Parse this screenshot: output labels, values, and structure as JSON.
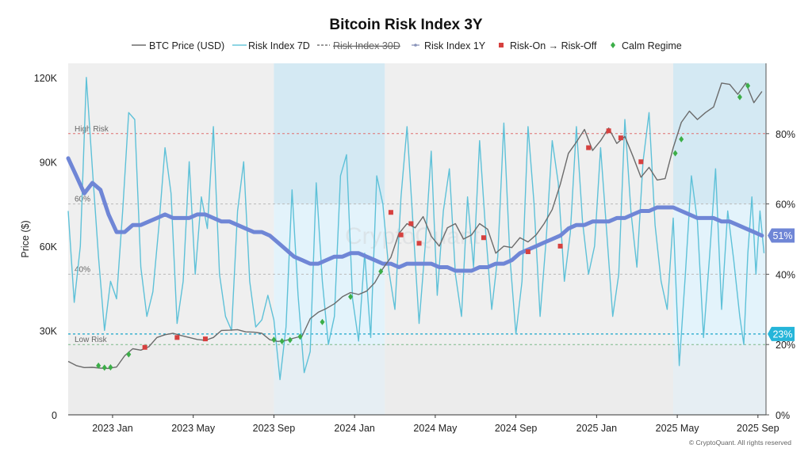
{
  "chart_data": {
    "type": "line",
    "title": "Bitcoin Risk Index 3Y",
    "legend": [
      "BTC Price (USD)",
      "Risk Index 7D",
      "Risk Index 30D",
      "Risk Index 1Y",
      "Risk-On → Risk-Off",
      "Calm Regime"
    ],
    "ylabel_left": "Price ($)",
    "y_left_ticks": [
      "0",
      "30K",
      "60K",
      "90K",
      "120K"
    ],
    "y_left_lim": [
      0,
      125000
    ],
    "y_right_ticks": [
      "0%",
      "20%",
      "40%",
      "60%",
      "80%"
    ],
    "y_right_lim": [
      0,
      100
    ],
    "x_ticks": [
      "2023 Jan",
      "2023 May",
      "2023 Sep",
      "2024 Jan",
      "2024 May",
      "2024 Sep",
      "2025 Jan",
      "2025 May",
      "2025 Sep"
    ],
    "x_tick_pos": [
      4,
      8,
      12,
      16,
      20,
      24,
      28,
      32,
      36
    ],
    "x_lim": [
      1.8,
      36.4
    ],
    "reference_lines": [
      {
        "label": "High Risk",
        "value": 80,
        "color": "#e07070"
      },
      {
        "label": "60%",
        "value": 60,
        "color": "#bbbbbb"
      },
      {
        "label": "40%",
        "value": 40,
        "color": "#bbbbbb"
      },
      {
        "label": "Low Risk",
        "value": 20,
        "color": "#7cb98a"
      },
      {
        "label": "",
        "value": 23,
        "color": "#1aa6c9"
      }
    ],
    "badges": [
      {
        "text": "51%",
        "value": 51,
        "color": "#6f86d6"
      },
      {
        "text": "23%",
        "value": 23,
        "color": "#25b5d9"
      }
    ],
    "regimes": [
      {
        "from": 1.8,
        "to": 12.0,
        "kind": "gray"
      },
      {
        "from": 12.0,
        "to": 17.5,
        "kind": "blue-dark"
      },
      {
        "from": 17.5,
        "to": 31.8,
        "kind": "gray"
      },
      {
        "from": 31.8,
        "to": 36.4,
        "kind": "blue-dark"
      }
    ],
    "btc_price": {
      "x": [
        1.8,
        2.2,
        2.6,
        3.0,
        3.4,
        3.8,
        4.2,
        4.6,
        5.0,
        5.4,
        5.8,
        6.2,
        6.6,
        7.0,
        7.4,
        7.8,
        8.2,
        8.6,
        9.0,
        9.4,
        9.8,
        10.2,
        10.6,
        11.0,
        11.4,
        11.8,
        12.2,
        12.6,
        13.0,
        13.4,
        13.8,
        14.2,
        14.6,
        15.0,
        15.4,
        15.8,
        16.2,
        16.6,
        17.0,
        17.4,
        17.8,
        18.2,
        18.6,
        19.0,
        19.4,
        19.8,
        20.2,
        20.6,
        21.0,
        21.4,
        21.8,
        22.2,
        22.6,
        23.0,
        23.4,
        23.8,
        24.2,
        24.6,
        25.0,
        25.4,
        25.8,
        26.2,
        26.6,
        27.0,
        27.4,
        27.8,
        28.2,
        28.6,
        29.0,
        29.4,
        29.8,
        30.2,
        30.6,
        31.0,
        31.4,
        31.8,
        32.2,
        32.6,
        33.0,
        33.4,
        33.8,
        34.2,
        34.6,
        35.0,
        35.4,
        35.8,
        36.2
      ],
      "y": [
        19000,
        17500,
        16800,
        16900,
        16600,
        16500,
        17000,
        21000,
        23500,
        23000,
        24200,
        27500,
        28500,
        29000,
        28200,
        27500,
        26800,
        26500,
        27500,
        30000,
        30100,
        30300,
        29500,
        29400,
        29000,
        26700,
        26100,
        26500,
        27300,
        28000,
        34200,
        36500,
        37800,
        39500,
        42000,
        43500,
        42800,
        44000,
        47000,
        52000,
        56000,
        64500,
        68000,
        66500,
        70500,
        63500,
        60000,
        66500,
        68000,
        62500,
        64000,
        68000,
        66000,
        57500,
        60000,
        59500,
        63000,
        61500,
        64000,
        68000,
        73000,
        82000,
        93000,
        97000,
        101500,
        94000,
        97500,
        102000,
        96500,
        99000,
        92000,
        84500,
        88000,
        83500,
        84000,
        95000,
        104000,
        108000,
        105000,
        107500,
        109500,
        118000,
        117500,
        114000,
        118000,
        111000,
        115000
      ]
    },
    "risk_1y": {
      "x": [
        1.8,
        2.2,
        2.6,
        3.0,
        3.4,
        3.8,
        4.2,
        4.6,
        5.0,
        5.4,
        5.8,
        6.2,
        6.6,
        7.0,
        7.4,
        7.8,
        8.2,
        8.6,
        9.0,
        9.4,
        9.8,
        10.2,
        10.6,
        11.0,
        11.4,
        11.8,
        12.2,
        12.6,
        13.0,
        13.4,
        13.8,
        14.2,
        14.6,
        15.0,
        15.4,
        15.8,
        16.2,
        16.6,
        17.0,
        17.4,
        17.8,
        18.2,
        18.6,
        19.0,
        19.4,
        19.8,
        20.2,
        20.6,
        21.0,
        21.4,
        21.8,
        22.2,
        22.6,
        23.0,
        23.4,
        23.8,
        24.2,
        24.6,
        25.0,
        25.4,
        25.8,
        26.2,
        26.6,
        27.0,
        27.4,
        27.8,
        28.2,
        28.6,
        29.0,
        29.4,
        29.8,
        30.2,
        30.6,
        31.0,
        31.4,
        31.8,
        32.2,
        32.6,
        33.0,
        33.4,
        33.8,
        34.2,
        34.6,
        35.0,
        35.4,
        35.8,
        36.2
      ],
      "y": [
        73,
        68,
        63,
        66,
        64,
        57,
        52,
        52,
        54,
        54,
        55,
        56,
        57,
        56,
        56,
        56,
        57,
        57,
        56,
        55,
        55,
        54,
        53,
        52,
        52,
        51,
        49,
        47,
        45,
        44,
        43,
        43,
        44,
        45,
        45,
        46,
        46,
        45,
        44,
        43,
        43,
        42,
        43,
        43,
        43,
        43,
        42,
        42,
        41,
        41,
        41,
        42,
        42,
        43,
        43,
        44,
        46,
        47,
        48,
        49,
        50,
        51,
        53,
        54,
        54,
        55,
        55,
        55,
        56,
        56,
        57,
        58,
        58,
        59,
        59,
        59,
        58,
        57,
        56,
        56,
        56,
        55,
        55,
        54,
        53,
        52,
        51
      ]
    },
    "risk_7d": {
      "x": [
        1.8,
        2.1,
        2.4,
        2.7,
        3.0,
        3.3,
        3.6,
        3.9,
        4.2,
        4.5,
        4.8,
        5.1,
        5.4,
        5.7,
        6.0,
        6.3,
        6.6,
        6.9,
        7.2,
        7.5,
        7.8,
        8.1,
        8.4,
        8.7,
        9.0,
        9.3,
        9.6,
        9.9,
        10.2,
        10.5,
        10.8,
        11.1,
        11.4,
        11.7,
        12.0,
        12.3,
        12.6,
        12.9,
        13.2,
        13.5,
        13.8,
        14.1,
        14.4,
        14.7,
        15.0,
        15.3,
        15.6,
        15.9,
        16.2,
        16.5,
        16.8,
        17.1,
        17.4,
        17.7,
        18.0,
        18.3,
        18.6,
        18.9,
        19.2,
        19.5,
        19.8,
        20.1,
        20.4,
        20.7,
        21.0,
        21.3,
        21.6,
        21.9,
        22.2,
        22.5,
        22.8,
        23.1,
        23.4,
        23.7,
        24.0,
        24.3,
        24.6,
        24.9,
        25.2,
        25.5,
        25.8,
        26.1,
        26.4,
        26.7,
        27.0,
        27.3,
        27.6,
        27.9,
        28.2,
        28.5,
        28.8,
        29.1,
        29.4,
        29.7,
        30.0,
        30.3,
        30.6,
        30.9,
        31.2,
        31.5,
        31.8,
        32.1,
        32.4,
        32.7,
        33.0,
        33.3,
        33.6,
        33.9,
        34.2,
        34.5,
        34.8,
        35.1,
        35.3,
        35.5,
        35.7,
        35.9,
        36.1,
        36.3
      ],
      "y": [
        58,
        32,
        48,
        96,
        70,
        45,
        24,
        38,
        33,
        58,
        86,
        84,
        42,
        28,
        35,
        54,
        76,
        63,
        26,
        38,
        72,
        40,
        62,
        53,
        82,
        40,
        28,
        24,
        58,
        72,
        38,
        25,
        27,
        34,
        27,
        10,
        25,
        64,
        34,
        12,
        18,
        66,
        38,
        20,
        28,
        68,
        74,
        33,
        21,
        46,
        22,
        68,
        60,
        41,
        30,
        62,
        82,
        54,
        26,
        48,
        75,
        34,
        58,
        70,
        40,
        28,
        62,
        42,
        78,
        52,
        30,
        45,
        83,
        45,
        23,
        38,
        82,
        60,
        28,
        50,
        78,
        66,
        38,
        52,
        82,
        55,
        40,
        48,
        76,
        52,
        28,
        40,
        84,
        58,
        42,
        72,
        86,
        54,
        38,
        30,
        56,
        14,
        40,
        68,
        55,
        22,
        45,
        70,
        30,
        58,
        44,
        28,
        20,
        46,
        62,
        40,
        58,
        46
      ]
    },
    "risk_on_off": {
      "x": [
        5.6,
        7.2,
        8.6,
        17.8,
        18.3,
        18.8,
        19.2,
        22.4,
        24.6,
        26.2,
        27.6,
        28.6,
        29.2,
        30.2
      ],
      "y": [
        24000,
        27500,
        27000,
        72000,
        64000,
        68000,
        61000,
        63000,
        58000,
        60000,
        95000,
        101000,
        98500,
        90000
      ]
    },
    "calm": {
      "x": [
        3.3,
        3.6,
        3.9,
        4.8,
        12.0,
        12.4,
        12.8,
        13.3,
        14.4,
        15.8,
        17.3,
        31.9,
        32.2,
        35.1,
        35.5
      ],
      "y": [
        17500,
        16800,
        16900,
        21500,
        26700,
        26200,
        26600,
        27800,
        33000,
        42000,
        51000,
        93000,
        98000,
        113000,
        117000
      ]
    }
  },
  "watermark": "CryptoQuant",
  "footer": "© CryptoQuant. All rights reserved"
}
